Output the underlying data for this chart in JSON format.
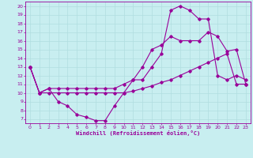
{
  "xlabel": "Windchill (Refroidissement éolien,°C)",
  "background_color": "#c8eef0",
  "line_color": "#990099",
  "grid_color": "#b0dde0",
  "xlim": [
    -0.5,
    23.5
  ],
  "ylim": [
    6.5,
    20.5
  ],
  "yticks": [
    7,
    8,
    9,
    10,
    11,
    12,
    13,
    14,
    15,
    16,
    17,
    18,
    19,
    20
  ],
  "xticks": [
    0,
    1,
    2,
    3,
    4,
    5,
    6,
    7,
    8,
    9,
    10,
    11,
    12,
    13,
    14,
    15,
    16,
    17,
    18,
    19,
    20,
    21,
    22,
    23
  ],
  "line1_x": [
    0,
    1,
    2,
    3,
    4,
    5,
    6,
    7,
    8,
    9,
    10,
    11,
    12,
    13,
    14,
    15,
    16,
    17,
    18,
    19,
    20,
    21,
    22,
    23
  ],
  "line1_y": [
    13,
    10,
    10.5,
    9,
    8.5,
    7.5,
    7.2,
    6.8,
    6.8,
    8.5,
    10,
    11.5,
    11.5,
    13,
    14.5,
    19.5,
    20,
    19.5,
    18.5,
    18.5,
    12,
    11.5,
    12,
    11.5
  ],
  "line2_x": [
    0,
    1,
    2,
    3,
    4,
    5,
    6,
    7,
    8,
    9,
    10,
    11,
    12,
    13,
    14,
    15,
    16,
    17,
    18,
    19,
    20,
    21,
    22,
    23
  ],
  "line2_y": [
    13,
    10,
    10.5,
    10.5,
    10.5,
    10.5,
    10.5,
    10.5,
    10.5,
    10.5,
    11,
    11.5,
    13,
    15,
    15.5,
    16.5,
    16,
    16,
    16,
    17,
    16.5,
    14.8,
    15,
    11
  ],
  "line3_x": [
    0,
    1,
    2,
    3,
    4,
    5,
    6,
    7,
    8,
    9,
    10,
    11,
    12,
    13,
    14,
    15,
    16,
    17,
    18,
    19,
    20,
    21,
    22,
    23
  ],
  "line3_y": [
    13,
    10,
    10,
    10,
    10,
    10,
    10,
    10,
    10,
    10,
    10,
    10.2,
    10.5,
    10.8,
    11.2,
    11.5,
    12,
    12.5,
    13,
    13.5,
    14,
    14.5,
    11,
    11
  ]
}
